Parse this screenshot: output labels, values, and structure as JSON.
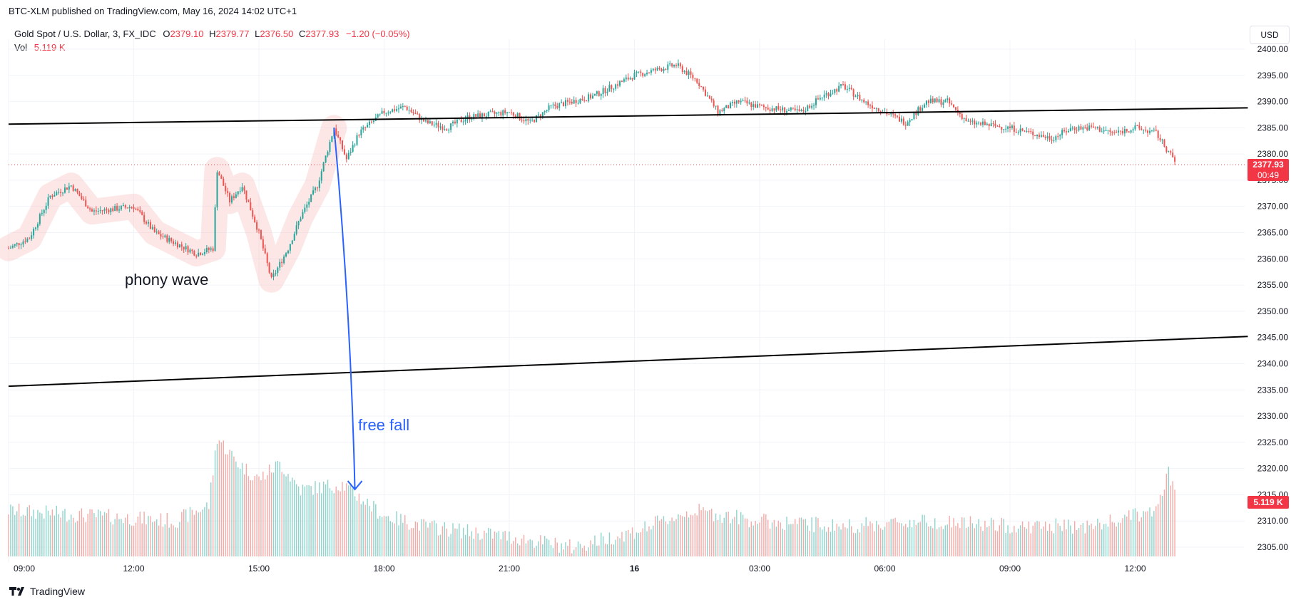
{
  "publisher": "BTC-XLM published on TradingView.com, May 16, 2024 14:02 UTC+1",
  "legend": {
    "symbol": "Gold Spot / U.S. Dollar, 3, FX_IDC",
    "o_label": "O",
    "open": "2379.10",
    "h_label": "H",
    "high": "2379.77",
    "l_label": "L",
    "low": "2376.50",
    "c_label": "C",
    "close": "2377.93",
    "change": "−1.20 (−0.05%)",
    "vol_label": "Vol",
    "vol": "5.119 K"
  },
  "currency_button": "USD",
  "brand": "TradingView",
  "annotations": {
    "phony": "phony wave",
    "free_fall": "free fall"
  },
  "price_tag": {
    "price": "2377.93",
    "countdown": "00:49"
  },
  "volume_tag": "5.119 K",
  "colors": {
    "up": "#26a69a",
    "down": "#ef5350",
    "line": "#000000",
    "arrow": "#2962ff",
    "highlight": "#f8c8c8"
  },
  "chart_data": {
    "type": "candlestick",
    "interval_minutes": 3,
    "x_ticks": [
      "09:00",
      "12:00",
      "15:00",
      "18:00",
      "21:00",
      "16",
      "03:00",
      "06:00",
      "09:00",
      "12:00"
    ],
    "y_ticks": [
      2305,
      2310,
      2315,
      2320,
      2325,
      2330,
      2335,
      2340,
      2345,
      2350,
      2355,
      2360,
      2365,
      2370,
      2375,
      2380,
      2385,
      2390,
      2395,
      2400
    ],
    "y_range": [
      2303,
      2402
    ],
    "price_path": [
      {
        "t": 0,
        "p": 2362
      },
      {
        "t": 0.5,
        "p": 2364
      },
      {
        "t": 1,
        "p": 2372
      },
      {
        "t": 1.5,
        "p": 2374
      },
      {
        "t": 2,
        "p": 2369
      },
      {
        "t": 3,
        "p": 2370
      },
      {
        "t": 3.5,
        "p": 2365
      },
      {
        "t": 4,
        "p": 2363
      },
      {
        "t": 4.5,
        "p": 2361
      },
      {
        "t": 4.9,
        "p": 2362
      },
      {
        "t": 5,
        "p": 2377
      },
      {
        "t": 5.3,
        "p": 2371
      },
      {
        "t": 5.6,
        "p": 2374
      },
      {
        "t": 6,
        "p": 2365
      },
      {
        "t": 6.3,
        "p": 2356
      },
      {
        "t": 6.7,
        "p": 2362
      },
      {
        "t": 7,
        "p": 2368
      },
      {
        "t": 7.4,
        "p": 2374
      },
      {
        "t": 7.8,
        "p": 2385
      },
      {
        "t": 8.1,
        "p": 2379
      },
      {
        "t": 8.4,
        "p": 2384
      },
      {
        "t": 9,
        "p": 2388
      },
      {
        "t": 9.5,
        "p": 2389
      },
      {
        "t": 10,
        "p": 2386
      },
      {
        "t": 10.5,
        "p": 2385
      },
      {
        "t": 11,
        "p": 2387
      },
      {
        "t": 12,
        "p": 2388
      },
      {
        "t": 12.5,
        "p": 2386
      },
      {
        "t": 13,
        "p": 2389
      },
      {
        "t": 14,
        "p": 2391
      },
      {
        "t": 15,
        "p": 2395
      },
      {
        "t": 16,
        "p": 2397
      },
      {
        "t": 16.5,
        "p": 2394
      },
      {
        "t": 17,
        "p": 2388
      },
      {
        "t": 17.5,
        "p": 2390
      },
      {
        "t": 18,
        "p": 2389
      },
      {
        "t": 19,
        "p": 2388
      },
      {
        "t": 19.5,
        "p": 2391
      },
      {
        "t": 20,
        "p": 2393
      },
      {
        "t": 20.5,
        "p": 2390
      },
      {
        "t": 21,
        "p": 2388
      },
      {
        "t": 21.5,
        "p": 2386
      },
      {
        "t": 22,
        "p": 2390
      },
      {
        "t": 22.5,
        "p": 2390
      },
      {
        "t": 23,
        "p": 2386
      },
      {
        "t": 24,
        "p": 2385
      },
      {
        "t": 25,
        "p": 2383
      },
      {
        "t": 25.5,
        "p": 2385
      },
      {
        "t": 26,
        "p": 2385
      },
      {
        "t": 26.5,
        "p": 2384
      },
      {
        "t": 27,
        "p": 2385
      },
      {
        "t": 27.5,
        "p": 2384
      },
      {
        "t": 28,
        "p": 2378
      }
    ],
    "volume_path": [
      {
        "t": 0,
        "v": 2312
      },
      {
        "t": 2,
        "v": 2311
      },
      {
        "t": 4,
        "v": 2310
      },
      {
        "t": 4.8,
        "v": 2313
      },
      {
        "t": 5,
        "v": 2326
      },
      {
        "t": 5.5,
        "v": 2321
      },
      {
        "t": 6,
        "v": 2318
      },
      {
        "t": 6.5,
        "v": 2321
      },
      {
        "t": 7,
        "v": 2316
      },
      {
        "t": 8,
        "v": 2317
      },
      {
        "t": 9,
        "v": 2311
      },
      {
        "t": 10,
        "v": 2309
      },
      {
        "t": 12,
        "v": 2307
      },
      {
        "t": 13.5,
        "v": 2305
      },
      {
        "t": 15,
        "v": 2308
      },
      {
        "t": 16.4,
        "v": 2312
      },
      {
        "t": 18,
        "v": 2310
      },
      {
        "t": 20,
        "v": 2309
      },
      {
        "t": 22,
        "v": 2310
      },
      {
        "t": 24,
        "v": 2309
      },
      {
        "t": 26,
        "v": 2309
      },
      {
        "t": 27.5,
        "v": 2312
      },
      {
        "t": 27.8,
        "v": 2319
      },
      {
        "t": 28,
        "v": 2315
      }
    ],
    "trendlines": [
      {
        "t1": 0,
        "p1": 2385.7,
        "t2": 29.7,
        "p2": 2388.8
      },
      {
        "t1": 0,
        "p1": 2335.7,
        "t2": 29.7,
        "p2": 2345.2
      }
    ],
    "arrow": {
      "from_t": 7.8,
      "from_p": 2385,
      "to_t": 8.3,
      "to_p": 2316
    },
    "last_price": 2377.93
  }
}
